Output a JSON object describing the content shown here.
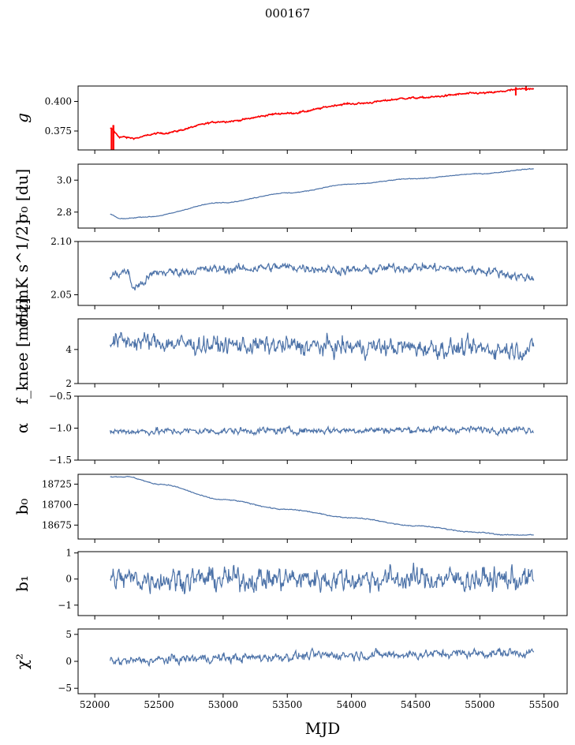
{
  "title": "000167",
  "chart_data": {
    "type": "line",
    "title": "000167",
    "xlabel": "MJD",
    "xlim": [
      51870,
      55680
    ],
    "xticks": [
      52000,
      52500,
      53000,
      53500,
      54000,
      54500,
      55000,
      55500
    ],
    "x_start": 52120,
    "x_end": 55420,
    "line_color": "#4c72a8",
    "overlay_color": "#ff0000",
    "panels": [
      {
        "id": "g",
        "label": "g",
        "label_style": "italic",
        "ylim": [
          0.359,
          0.413
        ],
        "yticks": [
          0.375,
          0.4
        ],
        "ytick_labels": [
          "0.375",
          "0.400"
        ],
        "series": "g",
        "anchors": [
          [
            52120,
            0.377
          ],
          [
            52200,
            0.37
          ],
          [
            52300,
            0.369
          ],
          [
            52500,
            0.373
          ],
          [
            53000,
            0.383
          ],
          [
            53500,
            0.39
          ],
          [
            54000,
            0.398
          ],
          [
            54500,
            0.403
          ],
          [
            55000,
            0.407
          ],
          [
            55420,
            0.411
          ]
        ],
        "noise": 0.0006,
        "has_overlay": true
      },
      {
        "id": "sigma0_du",
        "label": "σ₀ [du]",
        "ylim": [
          2.7,
          3.1
        ],
        "yticks": [
          2.8,
          3.0
        ],
        "ytick_labels": [
          "2.8",
          "3.0"
        ],
        "anchors": [
          [
            52120,
            2.785
          ],
          [
            52200,
            2.758
          ],
          [
            52400,
            2.77
          ],
          [
            53000,
            2.86
          ],
          [
            53500,
            2.92
          ],
          [
            54000,
            2.975
          ],
          [
            54500,
            3.01
          ],
          [
            55000,
            3.04
          ],
          [
            55420,
            3.07
          ]
        ],
        "noise": 0.002
      },
      {
        "id": "sigma0_mk",
        "label": "σ₀[mK s^1/2]",
        "ylim": [
          2.04,
          2.1
        ],
        "yticks": [
          2.05,
          2.1
        ],
        "ytick_labels": [
          "2.05",
          "2.10"
        ],
        "anchors": [
          [
            52120,
            2.068
          ],
          [
            52250,
            2.072
          ],
          [
            52300,
            2.057
          ],
          [
            52500,
            2.071
          ],
          [
            53000,
            2.074
          ],
          [
            53500,
            2.076
          ],
          [
            54000,
            2.073
          ],
          [
            54500,
            2.076
          ],
          [
            55000,
            2.073
          ],
          [
            55420,
            2.066
          ]
        ],
        "noise": 0.0035
      },
      {
        "id": "fknee",
        "label": "f_knee [mHz]",
        "ylim": [
          2,
          5.8
        ],
        "yticks": [
          2,
          4
        ],
        "ytick_labels": [
          "2",
          "4"
        ],
        "anchors": [
          [
            52120,
            4.5
          ],
          [
            53000,
            4.25
          ],
          [
            54000,
            4.15
          ],
          [
            55420,
            4.0
          ]
        ],
        "noise": 0.45
      },
      {
        "id": "alpha",
        "label": "α",
        "ylim": [
          -1.5,
          -0.5
        ],
        "yticks": [
          -1.5,
          -1.0,
          -0.5
        ],
        "ytick_labels": [
          "−1.5",
          "−1.0",
          "−0.5"
        ],
        "anchors": [
          [
            52120,
            -1.05
          ],
          [
            55420,
            -1.02
          ]
        ],
        "noise": 0.045
      },
      {
        "id": "b0",
        "label": "b₀",
        "ylim": [
          18658,
          18737
        ],
        "yticks": [
          18675,
          18700,
          18725
        ],
        "ytick_labels": [
          "18675",
          "18700",
          "18725"
        ],
        "anchors": [
          [
            52120,
            18734
          ],
          [
            52250,
            18734
          ],
          [
            52500,
            18725
          ],
          [
            53000,
            18706
          ],
          [
            53500,
            18694
          ],
          [
            54000,
            18684
          ],
          [
            54500,
            18674
          ],
          [
            55000,
            18666
          ],
          [
            55200,
            18663
          ],
          [
            55420,
            18663
          ]
        ],
        "noise": 0.5
      },
      {
        "id": "b1",
        "label": "b₁",
        "ylim": [
          -1.4,
          1.05
        ],
        "yticks": [
          -1,
          0,
          1
        ],
        "ytick_labels": [
          "−1",
          "0",
          "1"
        ],
        "anchors": [
          [
            52120,
            0
          ],
          [
            55420,
            0
          ]
        ],
        "noise": 0.38
      },
      {
        "id": "chi2",
        "label": "χ²",
        "ylim": [
          -6,
          6
        ],
        "yticks": [
          -5,
          0,
          5
        ],
        "ytick_labels": [
          "−5",
          "0",
          "5"
        ],
        "anchors": [
          [
            52120,
            0
          ],
          [
            53000,
            0.6
          ],
          [
            54000,
            1.2
          ],
          [
            55420,
            1.6
          ]
        ],
        "noise": 0.7
      }
    ]
  }
}
